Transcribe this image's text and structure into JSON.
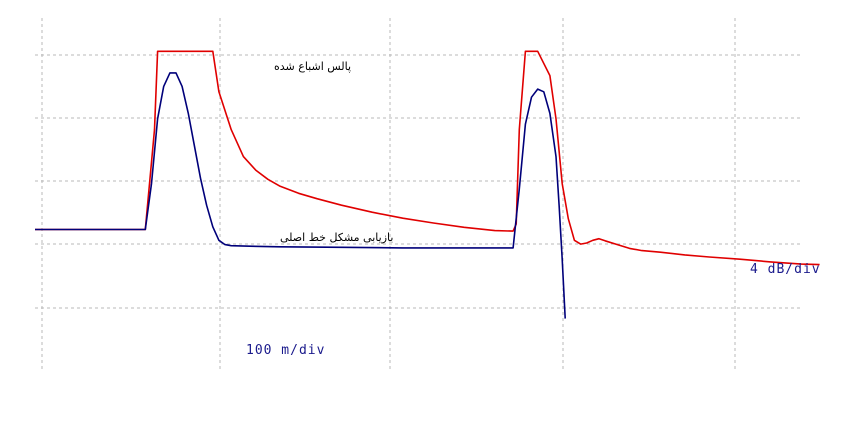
{
  "chart_data": {
    "type": "line",
    "title": "",
    "xlabel": "",
    "ylabel": "",
    "grid": true,
    "annotations": {
      "saturated_pulse": "پالس اشباع شده",
      "mainline_recovery": "بازیابی مشکل خط اصلی"
    },
    "scale_labels": {
      "horizontal": "100 m/div",
      "vertical": "4 dB/div"
    },
    "x_unit": "div",
    "y_unit": "div",
    "xlim": [
      0,
      13
    ],
    "ylim": [
      0,
      6
    ],
    "series": [
      {
        "color": "#e00000",
        "x": [
          0,
          1.8,
          1.95,
          2.0,
          2.05,
          2.9,
          3.0,
          3.2,
          3.4,
          3.6,
          3.8,
          4.0,
          4.3,
          4.6,
          5.0,
          5.5,
          6.0,
          6.5,
          7.0,
          7.5,
          7.8,
          7.85,
          7.9,
          8.0,
          8.1,
          8.2,
          8.4,
          8.5,
          8.6,
          8.7,
          8.8,
          8.9,
          9.0,
          9.1,
          9.2,
          9.3,
          9.5,
          9.7,
          9.9,
          10.2,
          10.6,
          11.0,
          11.5,
          12.0,
          12.5,
          12.8
        ],
        "y": [
          0.75,
          0.75,
          2.6,
          4.05,
          4.05,
          4.05,
          3.3,
          2.6,
          2.1,
          1.85,
          1.68,
          1.55,
          1.42,
          1.32,
          1.2,
          1.07,
          0.96,
          0.87,
          0.79,
          0.73,
          0.72,
          0.85,
          2.6,
          4.05,
          4.05,
          4.05,
          3.6,
          2.8,
          1.6,
          0.95,
          0.55,
          0.48,
          0.5,
          0.55,
          0.58,
          0.54,
          0.47,
          0.4,
          0.36,
          0.33,
          0.28,
          0.24,
          0.2,
          0.15,
          0.11,
          0.1
        ]
      },
      {
        "color": "#00007a",
        "x": [
          0,
          1.8,
          1.9,
          2.0,
          2.1,
          2.2,
          2.3,
          2.4,
          2.5,
          2.6,
          2.7,
          2.8,
          2.9,
          3.0,
          3.1,
          3.2,
          3.5,
          4.0,
          5.0,
          6.0,
          7.0,
          7.5,
          7.8,
          7.9,
          8.0,
          8.1,
          8.2,
          8.3,
          8.4,
          8.5,
          8.55,
          8.6,
          8.65
        ],
        "y": [
          0.75,
          0.75,
          1.6,
          2.8,
          3.4,
          3.65,
          3.65,
          3.4,
          2.9,
          2.3,
          1.7,
          1.2,
          0.8,
          0.55,
          0.47,
          0.45,
          0.44,
          0.43,
          0.42,
          0.41,
          0.41,
          0.41,
          0.41,
          1.5,
          2.7,
          3.2,
          3.35,
          3.3,
          2.9,
          2.1,
          1.2,
          0.2,
          -0.9
        ]
      }
    ]
  }
}
